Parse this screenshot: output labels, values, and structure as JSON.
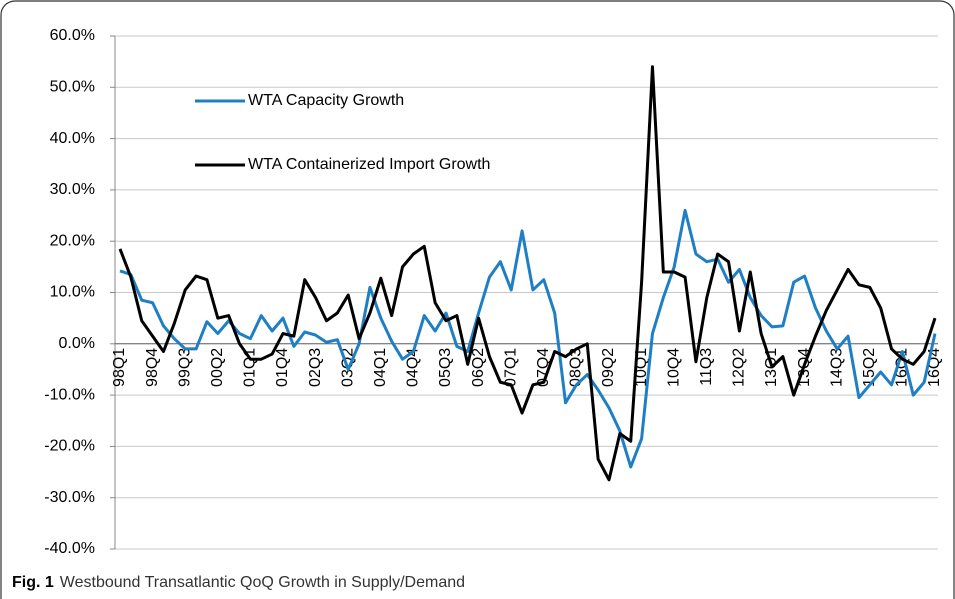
{
  "chart_data": {
    "type": "line",
    "categories": [
      "98Q1",
      null,
      null,
      "98Q4",
      null,
      null,
      "99Q3",
      null,
      null,
      "00Q2",
      null,
      null,
      "01Q1",
      null,
      null,
      "01Q4",
      null,
      null,
      "02Q3",
      null,
      null,
      "03Q2",
      null,
      null,
      "04Q1",
      null,
      null,
      "04Q4",
      null,
      null,
      "05Q3",
      null,
      null,
      "06Q2",
      null,
      null,
      "07Q1",
      null,
      null,
      "07Q4",
      null,
      null,
      "08Q3",
      null,
      null,
      "09Q2",
      null,
      null,
      "10Q1",
      null,
      null,
      "10Q4",
      null,
      null,
      "11Q3",
      null,
      null,
      "12Q2",
      null,
      null,
      "13Q1",
      null,
      null,
      "13Q4",
      null,
      null,
      "14Q3",
      null,
      null,
      "15Q2",
      null,
      null,
      "16Q1",
      null,
      null,
      "16Q4"
    ],
    "series": [
      {
        "name": "WTA Capacity Growth",
        "color": "#1f7fc4",
        "values": [
          14.2,
          13.5,
          8.5,
          8,
          3.5,
          1,
          -1,
          -1,
          4.3,
          2,
          4.5,
          2,
          1,
          5.5,
          2.5,
          5,
          -0.5,
          2.3,
          1.7,
          0.3,
          0.8,
          -5,
          0,
          11,
          5,
          0.5,
          -3,
          -1.5,
          5.5,
          2.5,
          6,
          -0.5,
          -1.5,
          6,
          13,
          16,
          10.5,
          22,
          10.5,
          12.5,
          6,
          -11.5,
          -8,
          -6,
          -9,
          -12.5,
          -17,
          -24,
          -18.5,
          2,
          9,
          15,
          26,
          17.5,
          16,
          16.5,
          12,
          14.5,
          9,
          5.5,
          3.3,
          3.5,
          12,
          13.2,
          7,
          2.5,
          -1,
          1.5,
          -10.5,
          -8,
          -5.5,
          -8,
          -1.5,
          -10,
          -7.5,
          2
        ]
      },
      {
        "name": "WTA Containerized Import Growth",
        "color": "#000000",
        "values": [
          18.5,
          13,
          4.5,
          1.5,
          -1.5,
          4,
          10.5,
          13.2,
          12.5,
          5,
          5.5,
          0,
          -3,
          -3,
          -2,
          2,
          1.5,
          12.5,
          9,
          4.5,
          6,
          9.5,
          1,
          6,
          12.8,
          5.5,
          15,
          17.5,
          19,
          8,
          4.5,
          5.5,
          -4,
          5,
          -2.5,
          -7.5,
          -8,
          -13.5,
          -8,
          -7.5,
          -1.5,
          -2.5,
          -1,
          0,
          -22.5,
          -26.5,
          -17.5,
          -19,
          12,
          54,
          14,
          14,
          13,
          -3.5,
          9,
          17.5,
          16,
          2.5,
          14,
          2,
          -4.5,
          -2.5,
          -10,
          -4,
          1.5,
          6.5,
          10.5,
          14.5,
          11.5,
          11,
          7,
          -1,
          -3,
          -4,
          -1.5,
          5
        ]
      }
    ],
    "ylim": [
      -40,
      60
    ],
    "yticks": [
      {
        "value": -40,
        "label": "-40.0%"
      },
      {
        "value": -30,
        "label": "-30.0%"
      },
      {
        "value": -20,
        "label": "-20.0%"
      },
      {
        "value": -10,
        "label": "-10.0%"
      },
      {
        "value": 0,
        "label": "0.0%"
      },
      {
        "value": 10,
        "label": "10.0%"
      },
      {
        "value": 20,
        "label": "20.0%"
      },
      {
        "value": 30,
        "label": "30.0%"
      },
      {
        "value": 40,
        "label": "40.0%"
      },
      {
        "value": 50,
        "label": "50.0%"
      },
      {
        "value": 60,
        "label": "60.0%"
      }
    ],
    "grid": true,
    "legend": "upper left",
    "figure_label": "Fig. 1",
    "caption": "Westbound Transatlantic QoQ Growth in Supply/Demand"
  }
}
